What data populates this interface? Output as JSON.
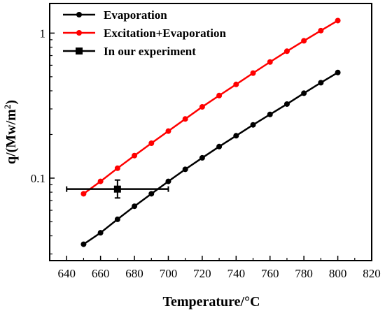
{
  "chart_data": {
    "type": "line",
    "xlabel": "Temperature/",
    "xlabel_unit": "°C",
    "ylabel": "q/(Mw/m",
    "ylabel_sup": "2",
    "ylabel_end": ")",
    "y_scale": "log",
    "xlim": [
      630,
      820
    ],
    "ylim": [
      0.027,
      1.6
    ],
    "x_ticks": [
      640,
      660,
      680,
      700,
      720,
      740,
      760,
      780,
      800,
      820
    ],
    "y_ticks": [
      {
        "value": 0.1,
        "label": "0.1"
      },
      {
        "value": 1,
        "label": "1"
      }
    ],
    "legend_position": "top-left",
    "x": [
      650,
      660,
      670,
      680,
      690,
      700,
      710,
      720,
      730,
      740,
      750,
      760,
      770,
      780,
      790,
      800
    ],
    "series": [
      {
        "name": "Evaporation",
        "color": "#000000",
        "marker": "circle",
        "values": [
          0.035,
          0.042,
          0.052,
          0.064,
          0.078,
          0.095,
          0.115,
          0.138,
          0.165,
          0.196,
          0.233,
          0.275,
          0.324,
          0.385,
          0.455,
          0.535
        ]
      },
      {
        "name": "Excitation+Evaporation",
        "color": "#ff0000",
        "marker": "circle",
        "values": [
          0.078,
          0.095,
          0.117,
          0.143,
          0.174,
          0.211,
          0.256,
          0.31,
          0.371,
          0.443,
          0.53,
          0.632,
          0.75,
          0.885,
          1.04,
          1.22
        ]
      },
      {
        "name": "In our experiment",
        "color": "#000000",
        "marker": "square",
        "points": [
          {
            "x": 670,
            "y": 0.084,
            "x_err": [
              640,
              700
            ],
            "y_err": [
              0.073,
              0.097
            ]
          }
        ]
      }
    ]
  }
}
